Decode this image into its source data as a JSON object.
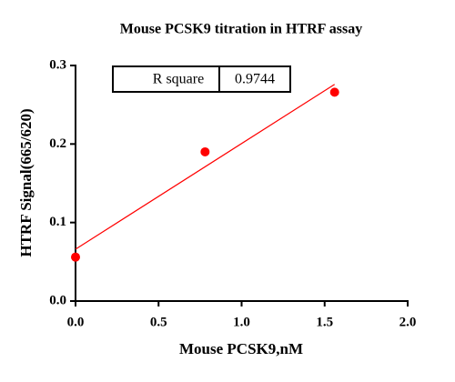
{
  "chart_data": {
    "type": "scatter",
    "title": "Mouse PCSK9 titration in HTRF assay",
    "x_label": "Mouse PCSK9,nM",
    "y_label": "HTRF Signal(665/620)",
    "x": [
      0,
      0.78,
      1.56
    ],
    "series": [
      {
        "color": "#ff0000",
        "values": [
          0.056,
          0.19,
          0.266
        ]
      }
    ],
    "fit_line": {
      "x": [
        0,
        1.56
      ],
      "y": [
        0.066,
        0.276
      ],
      "color": "#ff0000"
    },
    "annotation": {
      "label": "R square",
      "value": 0.9744
    },
    "xlim": [
      0,
      2
    ],
    "ylim": [
      0,
      0.3
    ],
    "xticks": [
      {
        "value": 0,
        "label": "0.0"
      },
      0.5,
      {
        "value": 1,
        "label": "1.0"
      },
      1.5,
      {
        "value": 2,
        "label": "2.0"
      }
    ],
    "yticks": [
      {
        "value": 0,
        "label": "0.0"
      },
      0.1,
      0.2,
      0.3
    ]
  }
}
